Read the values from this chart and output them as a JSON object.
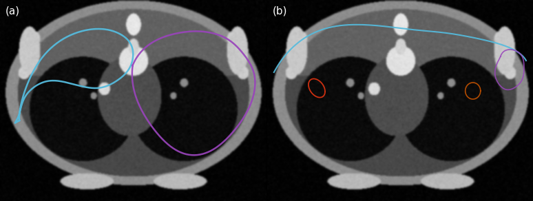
{
  "label_a": "(a)",
  "label_b": "(b)",
  "label_fontsize": 11,
  "label_color": "white",
  "fig_width": 7.74,
  "fig_height": 2.92,
  "background": "black",
  "dpi": 100
}
